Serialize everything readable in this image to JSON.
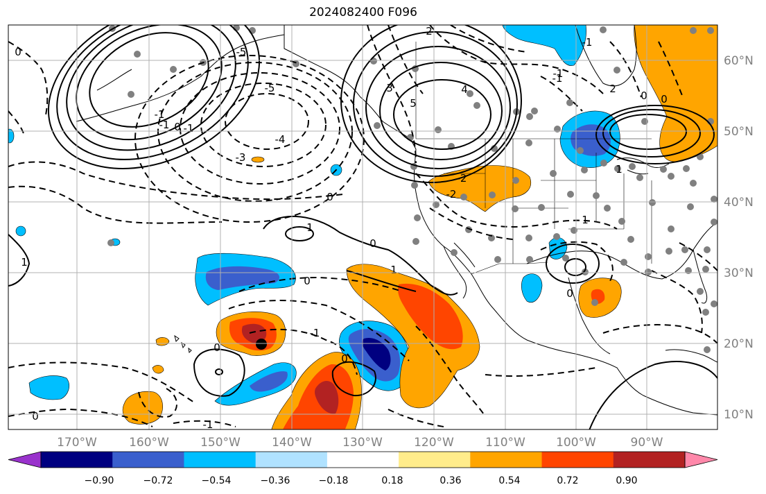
{
  "title": "2024082400 F096",
  "longitude_labels": [
    "170°W",
    "160°W",
    "150°W",
    "140°W",
    "130°W",
    "120°W",
    "110°W",
    "100°W",
    "90°W"
  ],
  "latitude_labels": [
    "60°N",
    "50°N",
    "40°N",
    "30°N",
    "20°N",
    "10°N"
  ],
  "contour_labels": [
    "-5",
    "-5",
    "-4",
    "-3",
    "-1",
    "-1",
    "0",
    "0",
    "0",
    "0",
    "-1",
    "1",
    "1",
    "1",
    "0",
    "2",
    "3",
    "4",
    "5",
    "-2",
    "-2",
    "2",
    "0",
    "-1",
    "-1",
    "1",
    "0",
    "-1",
    "0",
    "1",
    "0",
    "0",
    "-1",
    "-1",
    "0"
  ],
  "colorbar": {
    "ticks": [
      "−0.90",
      "−0.72",
      "−0.54",
      "−0.36",
      "−0.18",
      "0.18",
      "0.36",
      "0.54",
      "0.72",
      "0.90"
    ],
    "colors": [
      "#9932cc",
      "#000080",
      "#3a5fcd",
      "#00bfff",
      "#b0e2ff",
      "#ffffff",
      "#ffec8b",
      "#ffa500",
      "#ff4500",
      "#b22222",
      "#ff88aa"
    ]
  }
}
